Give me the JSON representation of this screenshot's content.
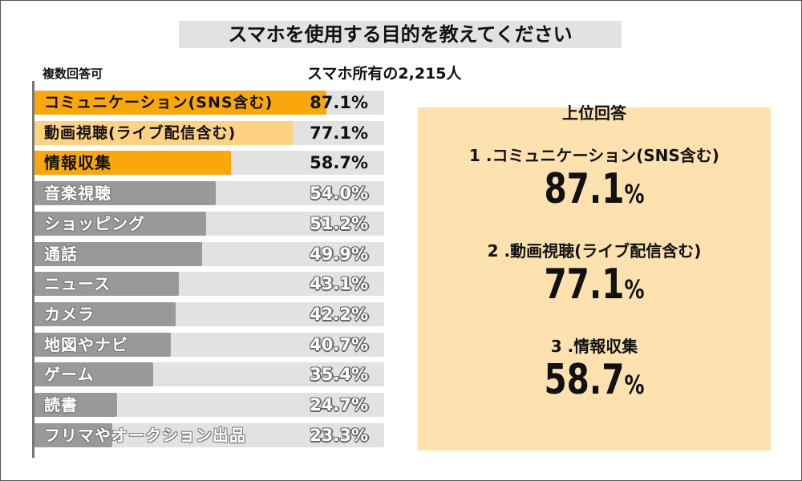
{
  "title": "スマホを使用する目的を教えてください",
  "note": "複数回答可",
  "sample": "スマホ所有の2,215人",
  "chart_data": {
    "type": "bar",
    "orientation": "horizontal",
    "title": "スマホを使用する目的を教えてください",
    "xlim": [
      0,
      100
    ],
    "unit": "%",
    "categories": [
      "コミュニケーション(SNS含む)",
      "動画視聴(ライブ配信含む)",
      "情報収集",
      "音楽視聴",
      "ショッピング",
      "通話",
      "ニュース",
      "カメラ",
      "地図やナビ",
      "ゲーム",
      "読書",
      "フリマやオークション出品"
    ],
    "values": [
      87.1,
      77.1,
      58.7,
      54.0,
      51.2,
      49.9,
      43.1,
      42.2,
      40.7,
      35.4,
      24.7,
      23.3
    ],
    "labels": [
      "87.1%",
      "77.1%",
      "58.7%",
      "54.0%",
      "51.2%",
      "49.9%",
      "43.1%",
      "42.2%",
      "40.7%",
      "35.4%",
      "24.7%",
      "23.3%"
    ],
    "colors": [
      "#f9a70c",
      "#fdd282",
      "#f9a70c",
      "#999999",
      "#999999",
      "#999999",
      "#999999",
      "#999999",
      "#999999",
      "#999999",
      "#999999",
      "#999999"
    ],
    "track_color": "#e2e2e2"
  },
  "panel": {
    "heading": "上位回答",
    "items": [
      {
        "rank": "1 .コミュニケーション(SNS含む)",
        "value": "87.1",
        "unit": "%"
      },
      {
        "rank": "2 .動画視聴(ライブ配信含む)",
        "value": "77.1",
        "unit": "%"
      },
      {
        "rank": "3 .情報収集",
        "value": "58.7",
        "unit": "%"
      }
    ]
  }
}
